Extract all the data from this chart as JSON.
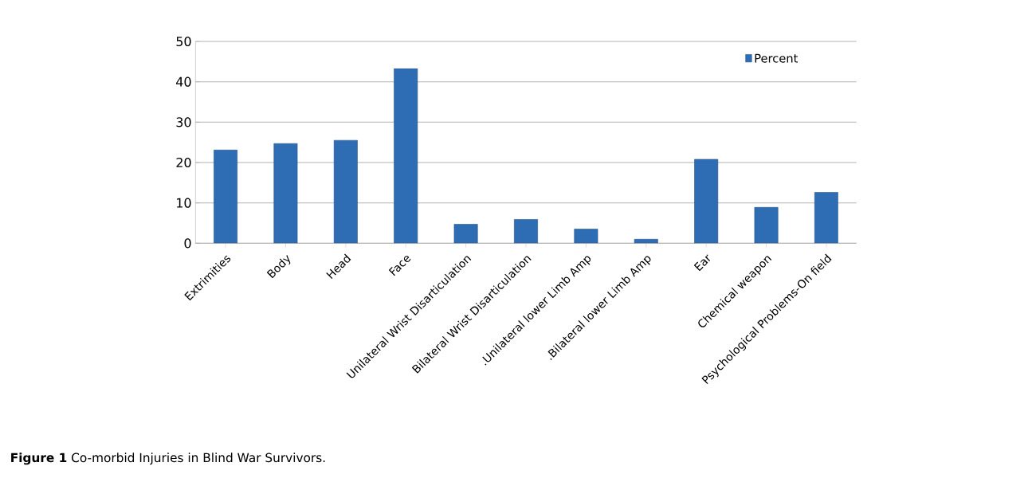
{
  "chart_data": {
    "type": "bar",
    "categories": [
      "Extrimities",
      "Body",
      "Head",
      "Face",
      "Unilateral Wrist Disarticulation",
      "Bilateral Wrist Disarticulation",
      ".Unilateral lower Limb Amp",
      ".Bilateral lower Limb Amp",
      "Ear",
      "Chemical weapon",
      "Psychological Problems-On field"
    ],
    "series": [
      {
        "name": "Percent",
        "color": "#2e6db4",
        "values": [
          23.1,
          24.7,
          25.5,
          43.3,
          4.7,
          5.9,
          3.5,
          1,
          20.8,
          8.9,
          12.6
        ]
      }
    ],
    "ylim": [
      0,
      50
    ],
    "yticks": [
      0,
      10,
      20,
      30,
      40,
      50
    ],
    "grid": "y",
    "legend": "top right",
    "annotations": [
      "**Figure 1** Co-morbid Injuries in Blind War Survivors."
    ]
  }
}
